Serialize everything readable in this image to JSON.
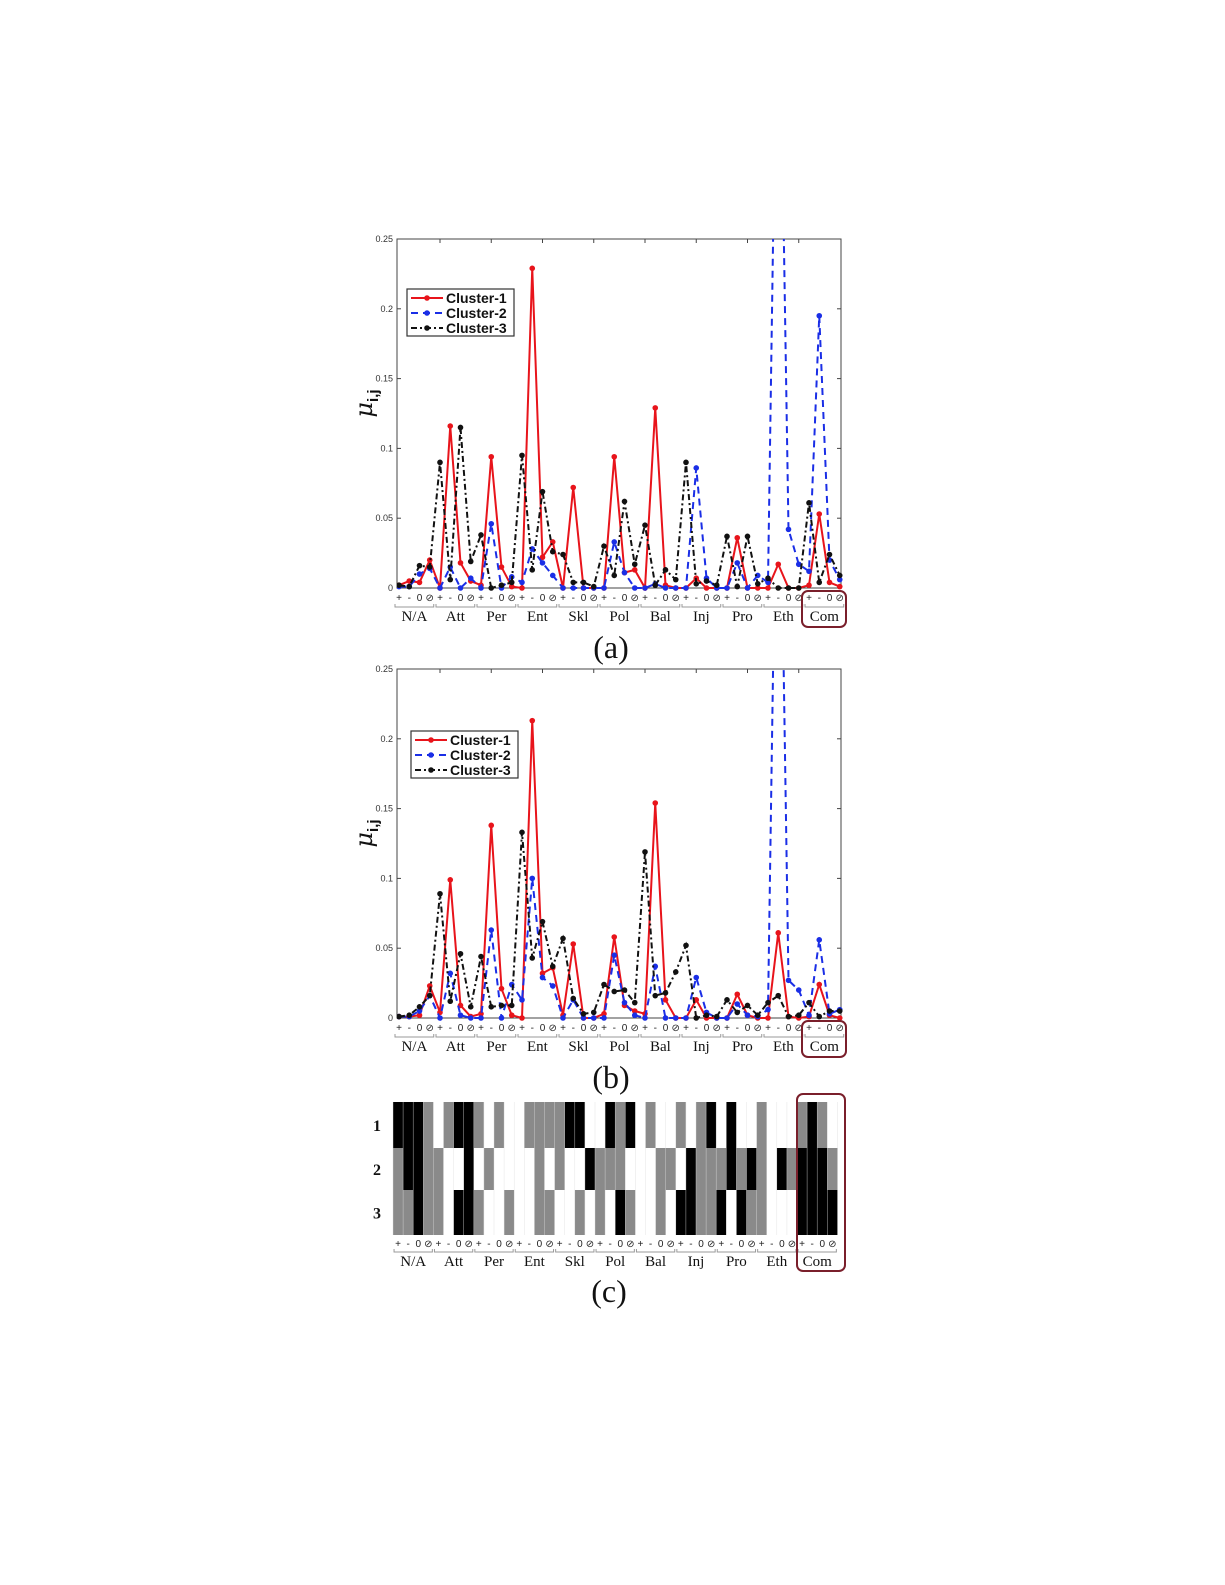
{
  "chart_data": [
    {
      "type": "line",
      "panel_label": "(a)",
      "ylabel": "μ",
      "ylabel_sub": "i,j",
      "ylim": [
        0,
        0.25
      ],
      "yticks": [
        "0",
        "0.05",
        "0.1",
        "0.15",
        "0.2",
        "0.25"
      ],
      "ytick_values": [
        0,
        0.05,
        0.1,
        0.15,
        0.2,
        0.25
      ],
      "groups": [
        "N/A",
        "Att",
        "Per",
        "Ent",
        "Skl",
        "Pol",
        "Bal",
        "Inj",
        "Pro",
        "Eth",
        "Com"
      ],
      "symbols": [
        "+",
        "-",
        "0",
        "⊘"
      ],
      "highlight_group": "Com",
      "legend_position": "top-left",
      "series": [
        {
          "name": "Cluster-1",
          "color": "#e8141b",
          "style": "solid",
          "values": [
            0.002,
            0.005,
            0.004,
            0.02,
            0,
            0.116,
            0.018,
            0.005,
            0.002,
            0.094,
            0.015,
            0.001,
            0,
            0.229,
            0.022,
            0.033,
            0,
            0.072,
            0,
            0,
            0,
            0.094,
            0.011,
            0.013,
            0,
            0.129,
            0.002,
            0,
            0,
            0.007,
            0,
            0,
            0,
            0.036,
            0,
            0,
            0,
            0.017,
            0,
            0,
            0.002,
            0.053,
            0.004,
            0.001
          ]
        },
        {
          "name": "Cluster-2",
          "color": "#1a2ee6",
          "style": "dashed",
          "values": [
            0.001,
            0.001,
            0.01,
            0.014,
            0,
            0.015,
            0,
            0.007,
            0,
            0.046,
            0,
            0.008,
            0.004,
            0.028,
            0.018,
            0.009,
            0,
            0,
            0,
            0,
            0,
            0.033,
            0.011,
            0,
            0,
            0.003,
            0,
            0,
            0,
            0.086,
            0.007,
            0,
            0,
            0.018,
            0,
            0.009,
            0.004,
            0.5,
            0.042,
            0.017,
            0.012,
            0.195,
            0.02,
            0.006
          ]
        },
        {
          "name": "Cluster-3",
          "color": "#111111",
          "style": "dashdot",
          "values": [
            0.002,
            0.001,
            0.016,
            0.015,
            0.09,
            0.006,
            0.115,
            0.019,
            0.038,
            0,
            0.002,
            0.004,
            0.095,
            0.013,
            0.069,
            0.026,
            0.024,
            0.004,
            0.004,
            0.001,
            0.03,
            0.009,
            0.062,
            0.017,
            0.045,
            0.002,
            0.013,
            0.006,
            0.09,
            0.003,
            0.005,
            0.002,
            0.037,
            0.001,
            0.037,
            0.003,
            0.007,
            0,
            0,
            0,
            0.061,
            0.004,
            0.024,
            0.009
          ]
        }
      ]
    },
    {
      "type": "line",
      "panel_label": "(b)",
      "ylabel": "μ",
      "ylabel_sub": "i,j",
      "ylim": [
        0,
        0.25
      ],
      "yticks": [
        "0",
        "0.05",
        "0.1",
        "0.15",
        "0.2",
        "0.25"
      ],
      "ytick_values": [
        0,
        0.05,
        0.1,
        0.15,
        0.2,
        0.25
      ],
      "groups": [
        "N/A",
        "Att",
        "Per",
        "Ent",
        "Skl",
        "Pol",
        "Bal",
        "Inj",
        "Pro",
        "Eth",
        "Com"
      ],
      "symbols": [
        "+",
        "-",
        "0",
        "⊘"
      ],
      "highlight_group": "Com",
      "legend_position": "top-left",
      "series": [
        {
          "name": "Cluster-1",
          "color": "#e8141b",
          "style": "solid",
          "values": [
            0.001,
            0.001,
            0.002,
            0.023,
            0.004,
            0.099,
            0.009,
            0.001,
            0.003,
            0.138,
            0.021,
            0.002,
            0,
            0.213,
            0.032,
            0.036,
            0.002,
            0.053,
            0,
            0,
            0.003,
            0.058,
            0.009,
            0.005,
            0.003,
            0.154,
            0.013,
            0,
            0,
            0.013,
            0,
            0,
            0,
            0.017,
            0.002,
            0,
            0,
            0.061,
            0.001,
            0,
            0.001,
            0.024,
            0.002,
            0
          ]
        },
        {
          "name": "Cluster-2",
          "color": "#1a2ee6",
          "style": "dashed",
          "values": [
            0.001,
            0.001,
            0.005,
            0.016,
            0,
            0.032,
            0.002,
            0,
            0,
            0.063,
            0,
            0.024,
            0.013,
            0.1,
            0.029,
            0.023,
            0,
            0.013,
            0,
            0,
            0,
            0.045,
            0.011,
            0.002,
            0,
            0.037,
            0,
            0,
            0,
            0.029,
            0.004,
            0,
            0,
            0.01,
            0.002,
            0.001,
            0.006,
            0.5,
            0.027,
            0.02,
            0.002,
            0.056,
            0.003,
            0.006
          ]
        },
        {
          "name": "Cluster-3",
          "color": "#111111",
          "style": "dashdot",
          "values": [
            0.001,
            0.002,
            0.008,
            0.016,
            0.089,
            0.012,
            0.046,
            0.008,
            0.044,
            0.008,
            0.009,
            0.009,
            0.133,
            0.043,
            0.069,
            0.037,
            0.057,
            0.014,
            0.003,
            0.004,
            0.024,
            0.019,
            0.02,
            0.011,
            0.119,
            0.016,
            0.018,
            0.033,
            0.052,
            0,
            0.002,
            0.001,
            0.013,
            0.004,
            0.009,
            0.002,
            0.011,
            0.016,
            0.001,
            0.002,
            0.011,
            0.001,
            0.005,
            0.005
          ]
        }
      ]
    },
    {
      "type": "heatmap",
      "panel_label": "(c)",
      "rows": [
        "1",
        "2",
        "3"
      ],
      "groups": [
        "N/A",
        "Att",
        "Per",
        "Ent",
        "Skl",
        "Pol",
        "Bal",
        "Inj",
        "Pro",
        "Eth",
        "Com"
      ],
      "symbols": [
        "+",
        "-",
        "0",
        "⊘"
      ],
      "highlight_group": "Com",
      "levels": {
        "0": "#ffffff",
        "1": "#8a8a8a",
        "2": "#000000"
      },
      "values": [
        [
          2,
          2,
          2,
          1,
          0,
          1,
          2,
          2,
          1,
          0,
          1,
          0,
          0,
          1,
          1,
          1,
          1,
          2,
          2,
          0,
          0,
          2,
          1,
          2,
          0,
          1,
          0,
          0,
          1,
          0,
          1,
          2,
          0,
          2,
          0,
          0,
          1,
          0,
          0,
          0,
          1,
          2,
          1,
          0
        ],
        [
          1,
          2,
          2,
          1,
          1,
          0,
          0,
          2,
          0,
          1,
          0,
          0,
          0,
          0,
          1,
          0,
          1,
          0,
          0,
          2,
          1,
          1,
          1,
          0,
          0,
          0,
          1,
          1,
          0,
          2,
          1,
          1,
          1,
          2,
          1,
          2,
          1,
          0,
          2,
          1,
          2,
          2,
          2,
          1
        ],
        [
          1,
          1,
          2,
          1,
          1,
          0,
          2,
          2,
          1,
          0,
          0,
          1,
          0,
          0,
          1,
          1,
          0,
          0,
          1,
          0,
          1,
          0,
          2,
          1,
          0,
          0,
          1,
          0,
          2,
          2,
          1,
          1,
          2,
          0,
          2,
          1,
          1,
          0,
          0,
          0,
          2,
          2,
          2,
          2
        ]
      ]
    }
  ]
}
